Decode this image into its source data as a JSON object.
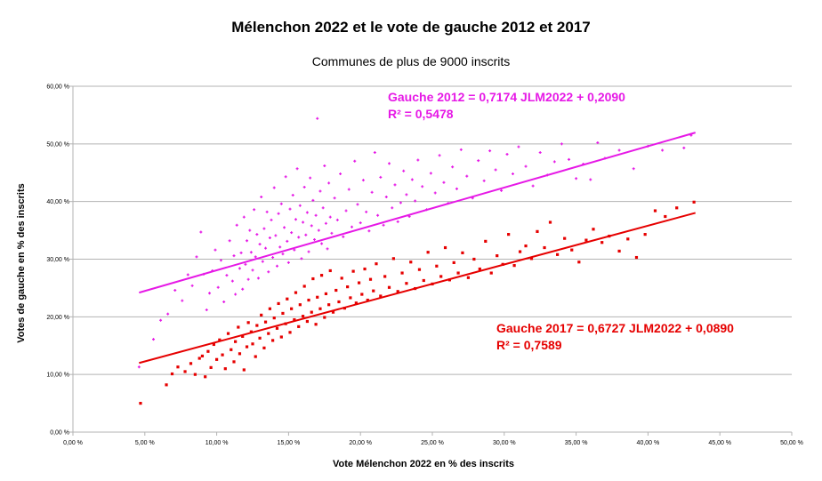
{
  "chart_data": {
    "type": "scatter",
    "title": "Mélenchon 2022 et le vote de gauche 2012 et 2017",
    "subtitle": "Communes de plus de 9000 inscrits",
    "xlabel": "Vote Mélenchon 2022 en % des inscrits",
    "ylabel": "Votes de gauche en % des inscrits",
    "xlim": [
      0,
      50
    ],
    "ylim": [
      0,
      60
    ],
    "x_ticks": [
      0,
      5,
      10,
      15,
      20,
      25,
      30,
      35,
      40,
      45,
      50
    ],
    "x_tick_labels": [
      "0,00 %",
      "5,00 %",
      "10,00 %",
      "15,00 %",
      "20,00 %",
      "25,00 %",
      "30,00 %",
      "35,00 %",
      "40,00 %",
      "45,00 %",
      "50,00 %"
    ],
    "y_ticks": [
      0,
      10,
      20,
      30,
      40,
      50,
      60
    ],
    "y_tick_labels": [
      "0,00 %",
      "10,00 %",
      "20,00 %",
      "30,00 %",
      "40,00 %",
      "50,00 %",
      "60,00 %"
    ],
    "grid": "horizontal",
    "colors": {
      "gauche_2012": "#e619e6",
      "gauche_2017": "#e60000"
    },
    "series": [
      {
        "id": "gauche_2012",
        "marker": "plus",
        "trendline": {
          "slope": 0.7174,
          "intercept": 20.9,
          "x_range": [
            4.6,
            43.3
          ]
        },
        "equation_lines": [
          "Gauche 2012 = 0,7174 JLM2022 + 0,2090",
          "R² = 0,5478"
        ],
        "points": [
          [
            4.6,
            11.3
          ],
          [
            5.6,
            16.1
          ],
          [
            6.1,
            19.4
          ],
          [
            6.6,
            20.5
          ],
          [
            7.1,
            24.6
          ],
          [
            7.6,
            22.8
          ],
          [
            8.0,
            27.3
          ],
          [
            8.3,
            25.4
          ],
          [
            8.6,
            30.4
          ],
          [
            8.9,
            34.7
          ],
          [
            9.1,
            27.4
          ],
          [
            9.3,
            21.2
          ],
          [
            9.5,
            24.1
          ],
          [
            9.7,
            28.0
          ],
          [
            9.9,
            31.6
          ],
          [
            10.1,
            25.1
          ],
          [
            10.3,
            29.8
          ],
          [
            10.5,
            22.6
          ],
          [
            10.7,
            27.2
          ],
          [
            10.9,
            33.2
          ],
          [
            11.1,
            26.2
          ],
          [
            11.2,
            30.6
          ],
          [
            11.3,
            23.9
          ],
          [
            11.4,
            35.9
          ],
          [
            11.6,
            28.4
          ],
          [
            11.7,
            31.1
          ],
          [
            11.8,
            24.8
          ],
          [
            11.9,
            37.3
          ],
          [
            12.0,
            29.1
          ],
          [
            12.1,
            33.2
          ],
          [
            12.2,
            26.5
          ],
          [
            12.3,
            35.0
          ],
          [
            12.4,
            31.2
          ],
          [
            12.5,
            28.1
          ],
          [
            12.6,
            38.6
          ],
          [
            12.7,
            30.4
          ],
          [
            12.8,
            34.3
          ],
          [
            12.9,
            26.7
          ],
          [
            13.0,
            32.6
          ],
          [
            13.1,
            40.8
          ],
          [
            13.2,
            29.6
          ],
          [
            13.3,
            35.3
          ],
          [
            13.4,
            31.9
          ],
          [
            13.5,
            38.2
          ],
          [
            13.6,
            27.8
          ],
          [
            13.7,
            33.7
          ],
          [
            13.8,
            36.8
          ],
          [
            13.9,
            30.3
          ],
          [
            14.0,
            42.4
          ],
          [
            14.1,
            34.1
          ],
          [
            14.2,
            28.8
          ],
          [
            14.3,
            37.9
          ],
          [
            14.4,
            32.1
          ],
          [
            14.5,
            39.6
          ],
          [
            14.6,
            30.9
          ],
          [
            14.7,
            35.5
          ],
          [
            14.8,
            44.3
          ],
          [
            14.9,
            33.1
          ],
          [
            15.0,
            29.4
          ],
          [
            15.1,
            38.7
          ],
          [
            15.2,
            34.6
          ],
          [
            15.3,
            41.1
          ],
          [
            15.4,
            31.6
          ],
          [
            15.5,
            36.9
          ],
          [
            15.6,
            45.7
          ],
          [
            15.7,
            33.8
          ],
          [
            15.8,
            39.3
          ],
          [
            15.9,
            30.1
          ],
          [
            16.0,
            36.4
          ],
          [
            16.1,
            42.5
          ],
          [
            16.2,
            34.2
          ],
          [
            16.3,
            38.1
          ],
          [
            16.4,
            31.3
          ],
          [
            16.5,
            44.1
          ],
          [
            16.6,
            35.8
          ],
          [
            16.7,
            40.2
          ],
          [
            16.8,
            33.4
          ],
          [
            16.9,
            37.6
          ],
          [
            17.0,
            54.4
          ],
          [
            17.1,
            35.0
          ],
          [
            17.2,
            41.8
          ],
          [
            17.3,
            32.7
          ],
          [
            17.4,
            38.9
          ],
          [
            17.5,
            46.2
          ],
          [
            17.6,
            36.2
          ],
          [
            17.7,
            31.8
          ],
          [
            17.8,
            43.2
          ],
          [
            17.9,
            37.3
          ],
          [
            18.0,
            34.5
          ],
          [
            18.2,
            40.6
          ],
          [
            18.4,
            36.8
          ],
          [
            18.6,
            44.8
          ],
          [
            18.8,
            33.9
          ],
          [
            19.0,
            38.4
          ],
          [
            19.2,
            42.1
          ],
          [
            19.4,
            35.6
          ],
          [
            19.6,
            47.0
          ],
          [
            19.8,
            39.5
          ],
          [
            20.0,
            36.3
          ],
          [
            20.2,
            43.7
          ],
          [
            20.4,
            38.2
          ],
          [
            20.6,
            34.9
          ],
          [
            20.8,
            41.6
          ],
          [
            21.0,
            48.5
          ],
          [
            21.2,
            37.6
          ],
          [
            21.4,
            44.2
          ],
          [
            21.6,
            35.9
          ],
          [
            21.8,
            40.8
          ],
          [
            22.0,
            46.6
          ],
          [
            22.2,
            38.9
          ],
          [
            22.4,
            42.9
          ],
          [
            22.6,
            36.5
          ],
          [
            22.8,
            39.8
          ],
          [
            23.0,
            45.3
          ],
          [
            23.2,
            41.2
          ],
          [
            23.4,
            37.4
          ],
          [
            23.6,
            43.8
          ],
          [
            23.8,
            40.1
          ],
          [
            24.0,
            47.2
          ],
          [
            24.3,
            42.6
          ],
          [
            24.6,
            38.6
          ],
          [
            24.9,
            44.9
          ],
          [
            25.2,
            41.5
          ],
          [
            25.5,
            48.0
          ],
          [
            25.8,
            43.3
          ],
          [
            26.1,
            39.7
          ],
          [
            26.4,
            46.0
          ],
          [
            26.7,
            42.2
          ],
          [
            27.0,
            49.0
          ],
          [
            27.4,
            44.4
          ],
          [
            27.8,
            40.6
          ],
          [
            28.2,
            47.1
          ],
          [
            28.6,
            43.6
          ],
          [
            29.0,
            48.8
          ],
          [
            29.4,
            45.5
          ],
          [
            29.8,
            41.9
          ],
          [
            30.2,
            48.2
          ],
          [
            30.6,
            44.8
          ],
          [
            31.0,
            49.5
          ],
          [
            31.5,
            46.1
          ],
          [
            32.0,
            42.7
          ],
          [
            32.5,
            48.5
          ],
          [
            33.0,
            44.6
          ],
          [
            33.5,
            46.9
          ],
          [
            34.0,
            50.0
          ],
          [
            34.5,
            47.3
          ],
          [
            35.0,
            44.0
          ],
          [
            35.5,
            46.5
          ],
          [
            36.0,
            43.8
          ],
          [
            36.5,
            50.2
          ],
          [
            37.0,
            47.5
          ],
          [
            38.0,
            48.9
          ],
          [
            39.0,
            45.7
          ],
          [
            40.0,
            49.6
          ],
          [
            41.0,
            48.9
          ],
          [
            42.5,
            49.3
          ],
          [
            43.0,
            51.5
          ]
        ]
      },
      {
        "id": "gauche_2017",
        "marker": "square",
        "trendline": {
          "slope": 0.6727,
          "intercept": 8.9,
          "x_range": [
            4.6,
            43.3
          ]
        },
        "equation_lines": [
          "Gauche 2017 = 0,6727 JLM2022 + 0,0890",
          "R² = 0,7589"
        ],
        "points": [
          [
            4.7,
            5.0
          ],
          [
            6.5,
            8.2
          ],
          [
            6.9,
            10.1
          ],
          [
            7.3,
            11.3
          ],
          [
            7.8,
            10.5
          ],
          [
            8.2,
            11.9
          ],
          [
            8.5,
            10.0
          ],
          [
            8.8,
            12.8
          ],
          [
            9.0,
            13.2
          ],
          [
            9.2,
            9.6
          ],
          [
            9.4,
            14.0
          ],
          [
            9.6,
            11.2
          ],
          [
            9.8,
            15.2
          ],
          [
            10.0,
            12.6
          ],
          [
            10.2,
            16.0
          ],
          [
            10.4,
            13.4
          ],
          [
            10.6,
            11.0
          ],
          [
            10.8,
            17.1
          ],
          [
            11.0,
            14.3
          ],
          [
            11.2,
            12.2
          ],
          [
            11.3,
            15.7
          ],
          [
            11.5,
            18.2
          ],
          [
            11.6,
            13.6
          ],
          [
            11.8,
            16.6
          ],
          [
            11.9,
            10.8
          ],
          [
            12.1,
            14.8
          ],
          [
            12.2,
            19.0
          ],
          [
            12.4,
            17.4
          ],
          [
            12.5,
            15.3
          ],
          [
            12.7,
            13.1
          ],
          [
            12.8,
            18.5
          ],
          [
            13.0,
            16.3
          ],
          [
            13.1,
            20.3
          ],
          [
            13.3,
            14.6
          ],
          [
            13.4,
            19.1
          ],
          [
            13.6,
            17.1
          ],
          [
            13.7,
            21.4
          ],
          [
            13.9,
            15.9
          ],
          [
            14.0,
            19.8
          ],
          [
            14.2,
            18.0
          ],
          [
            14.3,
            22.3
          ],
          [
            14.5,
            16.5
          ],
          [
            14.6,
            20.6
          ],
          [
            14.8,
            18.8
          ],
          [
            14.9,
            23.1
          ],
          [
            15.1,
            17.3
          ],
          [
            15.2,
            21.4
          ],
          [
            15.4,
            19.5
          ],
          [
            15.5,
            24.2
          ],
          [
            15.7,
            18.3
          ],
          [
            15.8,
            22.1
          ],
          [
            16.0,
            20.1
          ],
          [
            16.1,
            25.3
          ],
          [
            16.3,
            19.2
          ],
          [
            16.4,
            22.9
          ],
          [
            16.6,
            20.8
          ],
          [
            16.7,
            26.6
          ],
          [
            16.9,
            18.7
          ],
          [
            17.0,
            23.4
          ],
          [
            17.2,
            21.4
          ],
          [
            17.3,
            27.2
          ],
          [
            17.5,
            19.9
          ],
          [
            17.6,
            24.0
          ],
          [
            17.8,
            22.1
          ],
          [
            17.9,
            28.0
          ],
          [
            18.1,
            20.8
          ],
          [
            18.3,
            24.6
          ],
          [
            18.5,
            22.6
          ],
          [
            18.7,
            26.7
          ],
          [
            18.9,
            21.5
          ],
          [
            19.1,
            25.2
          ],
          [
            19.3,
            23.3
          ],
          [
            19.5,
            27.9
          ],
          [
            19.7,
            22.4
          ],
          [
            19.9,
            25.9
          ],
          [
            20.1,
            23.9
          ],
          [
            20.3,
            28.3
          ],
          [
            20.5,
            22.9
          ],
          [
            20.7,
            26.5
          ],
          [
            20.9,
            24.5
          ],
          [
            21.1,
            29.2
          ],
          [
            21.4,
            23.6
          ],
          [
            21.7,
            27.0
          ],
          [
            22.0,
            25.1
          ],
          [
            22.3,
            30.1
          ],
          [
            22.6,
            24.4
          ],
          [
            22.9,
            27.6
          ],
          [
            23.2,
            25.8
          ],
          [
            23.5,
            29.5
          ],
          [
            23.8,
            24.9
          ],
          [
            24.1,
            28.2
          ],
          [
            24.4,
            26.3
          ],
          [
            24.7,
            31.2
          ],
          [
            25.0,
            25.7
          ],
          [
            25.3,
            28.8
          ],
          [
            25.6,
            27.0
          ],
          [
            25.9,
            32.0
          ],
          [
            26.2,
            26.4
          ],
          [
            26.5,
            29.4
          ],
          [
            26.8,
            27.6
          ],
          [
            27.1,
            31.1
          ],
          [
            27.5,
            26.8
          ],
          [
            27.9,
            30.0
          ],
          [
            28.3,
            28.3
          ],
          [
            28.7,
            33.1
          ],
          [
            29.1,
            27.6
          ],
          [
            29.5,
            30.6
          ],
          [
            29.9,
            29.1
          ],
          [
            30.3,
            34.3
          ],
          [
            30.7,
            28.9
          ],
          [
            31.1,
            31.3
          ],
          [
            31.5,
            32.3
          ],
          [
            31.9,
            30.1
          ],
          [
            32.3,
            34.8
          ],
          [
            32.8,
            32.0
          ],
          [
            33.2,
            36.4
          ],
          [
            33.7,
            30.8
          ],
          [
            34.2,
            33.6
          ],
          [
            34.7,
            31.6
          ],
          [
            35.2,
            29.5
          ],
          [
            35.7,
            33.3
          ],
          [
            36.2,
            35.2
          ],
          [
            36.8,
            32.9
          ],
          [
            37.3,
            34.0
          ],
          [
            38.0,
            31.4
          ],
          [
            38.6,
            33.5
          ],
          [
            39.2,
            30.3
          ],
          [
            39.8,
            34.3
          ],
          [
            40.5,
            38.4
          ],
          [
            41.2,
            37.4
          ],
          [
            42.0,
            38.9
          ],
          [
            43.2,
            39.9
          ]
        ]
      }
    ]
  }
}
